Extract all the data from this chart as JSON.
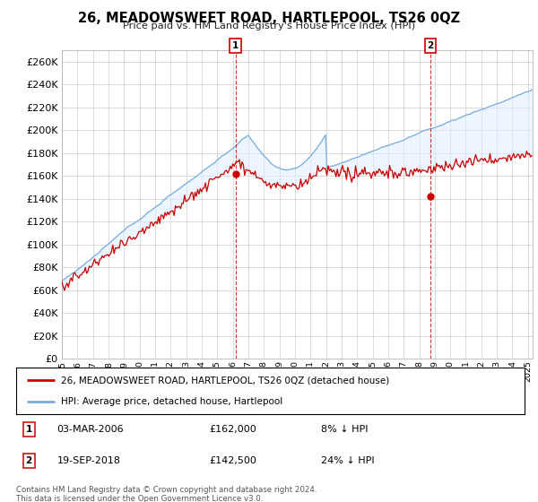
{
  "title": "26, MEADOWSWEET ROAD, HARTLEPOOL, TS26 0QZ",
  "subtitle": "Price paid vs. HM Land Registry's House Price Index (HPI)",
  "legend_line1": "26, MEADOWSWEET ROAD, HARTLEPOOL, TS26 0QZ (detached house)",
  "legend_line2": "HPI: Average price, detached house, Hartlepool",
  "sale1_date": "03-MAR-2006",
  "sale1_price": "£162,000",
  "sale1_hpi": "8% ↓ HPI",
  "sale2_date": "19-SEP-2018",
  "sale2_price": "£142,500",
  "sale2_hpi": "24% ↓ HPI",
  "copyright": "Contains HM Land Registry data © Crown copyright and database right 2024.\nThis data is licensed under the Open Government Licence v3.0.",
  "ylim": [
    0,
    270000
  ],
  "yticks": [
    0,
    20000,
    40000,
    60000,
    80000,
    100000,
    120000,
    140000,
    160000,
    180000,
    200000,
    220000,
    240000,
    260000
  ],
  "sale1_year": 2006.17,
  "sale2_year": 2018.72,
  "sale1_price_val": 162000,
  "sale2_price_val": 142500,
  "red_color": "#cc0000",
  "blue_color": "#7aacdc",
  "blue_fill": "#ddeeff",
  "background_color": "#ffffff",
  "grid_color": "#cccccc",
  "xlim_start": 1995,
  "xlim_end": 2025.3
}
